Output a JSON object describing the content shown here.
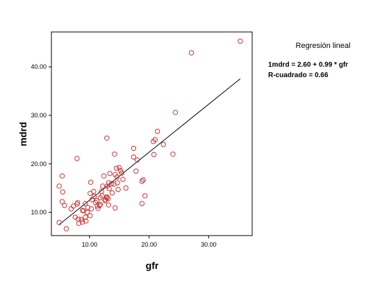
{
  "chart_data": {
    "type": "scatter",
    "xlabel": "gfr",
    "ylabel": "mdrd",
    "xlim": [
      3.6,
      37.3
    ],
    "ylim": [
      5.2,
      47.2
    ],
    "xticks": [
      10,
      20,
      30
    ],
    "yticks": [
      10,
      20,
      30,
      40
    ],
    "xtick_labels": [
      "10.00",
      "20.00",
      "30.00"
    ],
    "ytick_labels": [
      "10.00",
      "20.00",
      "30.00",
      "40.00"
    ],
    "grid": false,
    "marker_color": "#cc3333",
    "line_color": "#000000",
    "regression": {
      "title": "Regresión lineal",
      "equation": "1mdrd = 2.60 + 0.99 * gfr",
      "r_squared": "R-cuadrado = 0.66",
      "intercept": 2.6,
      "slope": 0.99,
      "x_range": [
        4.9,
        35.3
      ]
    },
    "points": [
      [
        35.3,
        45.3
      ],
      [
        27.1,
        42.9
      ],
      [
        24.4,
        30.6
      ],
      [
        21.4,
        26.7
      ],
      [
        21.0,
        25.0
      ],
      [
        22.4,
        24.0
      ],
      [
        20.7,
        24.6
      ],
      [
        20.8,
        21.9
      ],
      [
        24.0,
        22.0
      ],
      [
        17.4,
        23.2
      ],
      [
        17.4,
        21.4
      ],
      [
        14.2,
        22.0
      ],
      [
        12.9,
        25.3
      ],
      [
        7.9,
        21.1
      ],
      [
        5.4,
        17.5
      ],
      [
        4.9,
        15.4
      ],
      [
        5.5,
        14.2
      ],
      [
        5.8,
        11.4
      ],
      [
        5.4,
        12.2
      ],
      [
        4.9,
        7.9
      ],
      [
        6.1,
        6.6
      ],
      [
        6.9,
        10.7
      ],
      [
        7.3,
        11.3
      ],
      [
        7.9,
        11.7
      ],
      [
        8.1,
        8.6
      ],
      [
        8.2,
        7.7
      ],
      [
        8.8,
        8.0
      ],
      [
        9.4,
        8.2
      ],
      [
        9.3,
        9.0
      ],
      [
        9.0,
        10.3
      ],
      [
        9.3,
        11.8
      ],
      [
        9.7,
        11.0
      ],
      [
        10.4,
        12.6
      ],
      [
        10.1,
        13.9
      ],
      [
        10.2,
        16.2
      ],
      [
        10.7,
        14.3
      ],
      [
        11.0,
        12.0
      ],
      [
        11.7,
        11.4
      ],
      [
        11.4,
        10.8
      ],
      [
        11.2,
        12.4
      ],
      [
        11.8,
        13.0
      ],
      [
        12.0,
        14.3
      ],
      [
        12.2,
        15.4
      ],
      [
        12.4,
        17.5
      ],
      [
        12.1,
        13.4
      ],
      [
        12.7,
        12.6
      ],
      [
        12.9,
        13.2
      ],
      [
        13.0,
        15.4
      ],
      [
        13.2,
        16.1
      ],
      [
        13.4,
        18.0
      ],
      [
        13.3,
        14.9
      ],
      [
        13.8,
        14.0
      ],
      [
        14.1,
        15.8
      ],
      [
        14.3,
        17.8
      ],
      [
        14.5,
        19.1
      ],
      [
        14.7,
        16.1
      ],
      [
        14.8,
        14.7
      ],
      [
        15.2,
        18.6
      ],
      [
        15.4,
        18.1
      ],
      [
        15.6,
        16.8
      ],
      [
        16.1,
        15.0
      ],
      [
        17.8,
        18.5
      ],
      [
        18.0,
        20.8
      ],
      [
        18.8,
        16.4
      ],
      [
        19.0,
        16.7
      ],
      [
        19.3,
        13.4
      ],
      [
        18.8,
        11.8
      ],
      [
        14.3,
        10.9
      ],
      [
        13.2,
        11.5
      ],
      [
        10.1,
        9.3
      ],
      [
        10.3,
        10.7
      ],
      [
        9.6,
        10.0
      ],
      [
        11.3,
        11.3
      ],
      [
        8.0,
        12.0
      ],
      [
        7.6,
        9.0
      ],
      [
        8.6,
        8.5
      ],
      [
        12.9,
        13.0
      ],
      [
        12.6,
        12.4
      ],
      [
        13.1,
        12.8
      ],
      [
        8.8,
        10.4
      ],
      [
        10.8,
        13.3
      ],
      [
        11.8,
        11.6
      ],
      [
        14.6,
        17.3
      ],
      [
        13.7,
        15.9
      ],
      [
        15.0,
        19.2
      ]
    ]
  }
}
